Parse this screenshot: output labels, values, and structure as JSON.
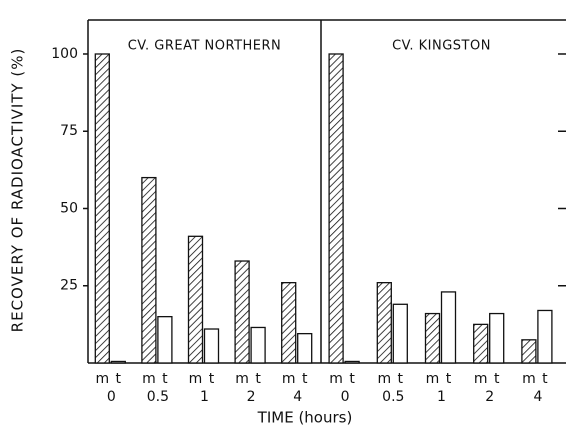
{
  "chart_data": [
    {
      "type": "bar",
      "title": "CV. GREAT NORTHERN",
      "ylabel": "RECOVERY OF RADIOACTIVITY (%)",
      "xlabel": "TIME (hours)",
      "categories": [
        "0",
        "0.5",
        "1",
        "2",
        "4"
      ],
      "series": [
        {
          "name": "m",
          "color": "#111111",
          "hatch": true,
          "values": [
            100,
            60,
            41,
            33,
            26
          ]
        },
        {
          "name": "t",
          "color": "#111111",
          "hatch": false,
          "values": [
            0.5,
            15,
            11,
            11.5,
            9.5
          ]
        }
      ],
      "ylim": [
        0,
        111
      ],
      "yticks": [
        25,
        50,
        75,
        100
      ],
      "ytick_side": "left"
    },
    {
      "type": "bar",
      "title": "CV. KINGSTON",
      "categories": [
        "0",
        "0.5",
        "1",
        "2",
        "4"
      ],
      "series": [
        {
          "name": "m",
          "color": "#111111",
          "hatch": true,
          "values": [
            100,
            26,
            16,
            12.5,
            7.5
          ]
        },
        {
          "name": "t",
          "color": "#111111",
          "hatch": false,
          "values": [
            0.5,
            19,
            23,
            16,
            17
          ]
        }
      ],
      "ylim": [
        0,
        111
      ],
      "yticks": [
        25,
        50,
        75,
        100
      ],
      "ytick_side": "right"
    }
  ]
}
